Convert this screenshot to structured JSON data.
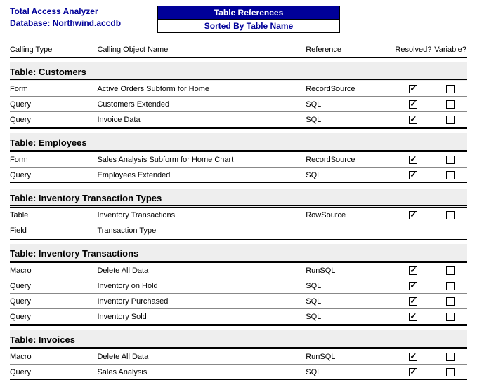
{
  "header": {
    "product": "Total Access Analyzer",
    "database_label": "Database: Northwind.accdb",
    "title": "Table References",
    "subtitle": "Sorted By Table Name"
  },
  "columns": {
    "calling_type": "Calling Type",
    "calling_object": "Calling Object Name",
    "reference": "Reference",
    "resolved": "Resolved?",
    "variable": "Variable?"
  },
  "groups": [
    {
      "title": "Table: Customers",
      "rows": [
        {
          "type": "Form",
          "object": "Active Orders Subform for Home",
          "ref": "RecordSource",
          "resolved": true,
          "variable": false
        },
        {
          "type": "Query",
          "object": "Customers Extended",
          "ref": "SQL",
          "resolved": true,
          "variable": false
        },
        {
          "type": "Query",
          "object": "Invoice Data",
          "ref": "SQL",
          "resolved": true,
          "variable": false
        }
      ]
    },
    {
      "title": "Table: Employees",
      "rows": [
        {
          "type": "Form",
          "object": "Sales Analysis Subform for Home Chart",
          "ref": "RecordSource",
          "resolved": true,
          "variable": false
        },
        {
          "type": "Query",
          "object": "Employees Extended",
          "ref": "SQL",
          "resolved": true,
          "variable": false
        }
      ]
    },
    {
      "title": "Table: Inventory Transaction Types",
      "rows": [
        {
          "type": "Table",
          "object": "Inventory Transactions",
          "ref": "RowSource",
          "resolved": true,
          "variable": false,
          "sub": {
            "type": "Field",
            "object": "Transaction Type"
          }
        }
      ]
    },
    {
      "title": "Table: Inventory Transactions",
      "rows": [
        {
          "type": "Macro",
          "object": "Delete All Data",
          "ref": "RunSQL",
          "resolved": true,
          "variable": false
        },
        {
          "type": "Query",
          "object": "Inventory on Hold",
          "ref": "SQL",
          "resolved": true,
          "variable": false
        },
        {
          "type": "Query",
          "object": "Inventory Purchased",
          "ref": "SQL",
          "resolved": true,
          "variable": false
        },
        {
          "type": "Query",
          "object": "Inventory Sold",
          "ref": "SQL",
          "resolved": true,
          "variable": false
        }
      ]
    },
    {
      "title": "Table: Invoices",
      "rows": [
        {
          "type": "Macro",
          "object": "Delete All Data",
          "ref": "RunSQL",
          "resolved": true,
          "variable": false
        },
        {
          "type": "Query",
          "object": "Sales Analysis",
          "ref": "SQL",
          "resolved": true,
          "variable": false
        }
      ]
    }
  ]
}
